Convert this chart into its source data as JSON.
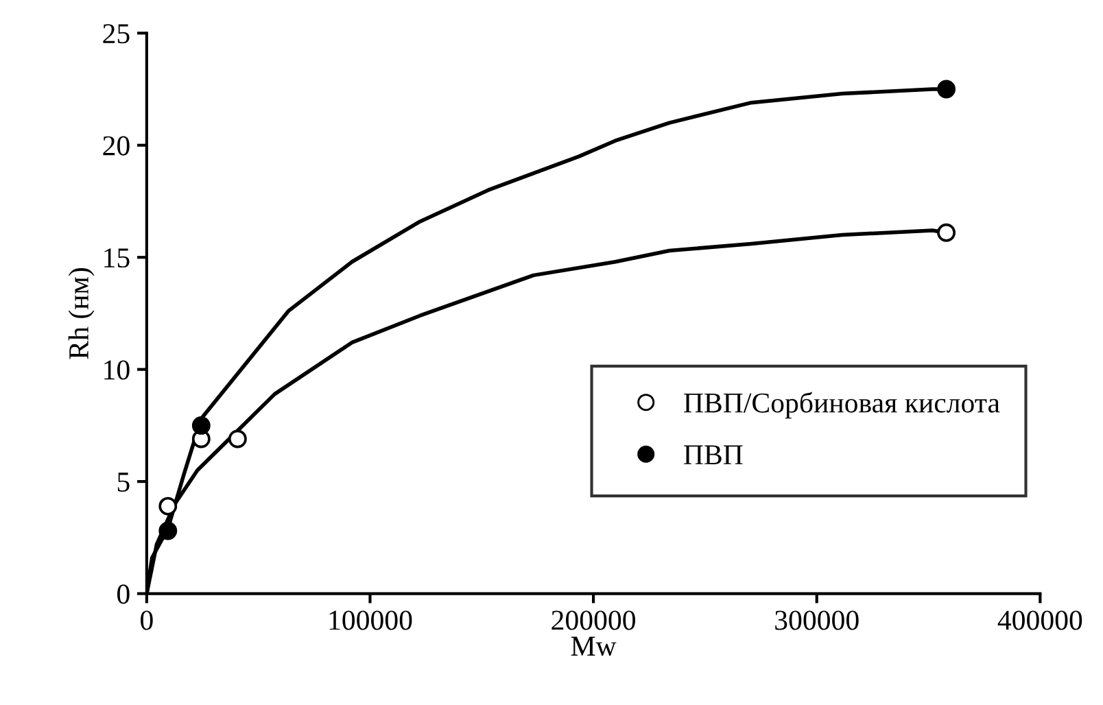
{
  "chart_data": {
    "type": "scatter",
    "xlabel": "Mw",
    "ylabel": "Rh (нм)",
    "xlim": [
      0,
      400000
    ],
    "xticks": [
      0,
      100000,
      200000,
      300000,
      400000
    ],
    "ylim": [
      0,
      25
    ],
    "yticks": [
      0,
      5,
      10,
      15,
      20,
      25
    ],
    "grid": false,
    "legend": "right",
    "marker": "circle",
    "series": [
      {
        "name": "ПВП/Сорбиновая кислота",
        "color": "#ffffff",
        "x": [
          9500,
          24400,
          40700,
          358000
        ],
        "values": [
          3.9,
          6.9,
          6.9,
          16.1
        ]
      },
      {
        "name": "ПВП",
        "color": "#000000",
        "x": [
          9500,
          24400,
          358000
        ],
        "values": [
          2.8,
          7.5,
          22.5
        ]
      },
      {
        "type": "line",
        "color": "#000000",
        "marker": "none",
        "x": [
          0,
          4500,
          12600,
          22700,
          41000,
          57300,
          91900,
          122400,
          173200,
          209800,
          234000,
          270700,
          311400,
          351800,
          358000
        ],
        "values": [
          0,
          2.2,
          4.0,
          5.5,
          7.3,
          8.9,
          11.2,
          12.4,
          14.2,
          14.8,
          15.3,
          15.6,
          16.0,
          16.2,
          16.1
        ]
      },
      {
        "type": "line",
        "color": "#000000",
        "marker": "none",
        "x": [
          0,
          2400,
          9500,
          16600,
          24400,
          63400,
          91900,
          122400,
          152900,
          193500,
          209800,
          234000,
          270700,
          311400,
          351800,
          358000
        ],
        "values": [
          0,
          1.6,
          2.9,
          5.3,
          7.8,
          12.6,
          14.8,
          16.6,
          18.0,
          19.5,
          20.2,
          21.0,
          21.9,
          22.3,
          22.5,
          22.5
        ]
      }
    ]
  }
}
